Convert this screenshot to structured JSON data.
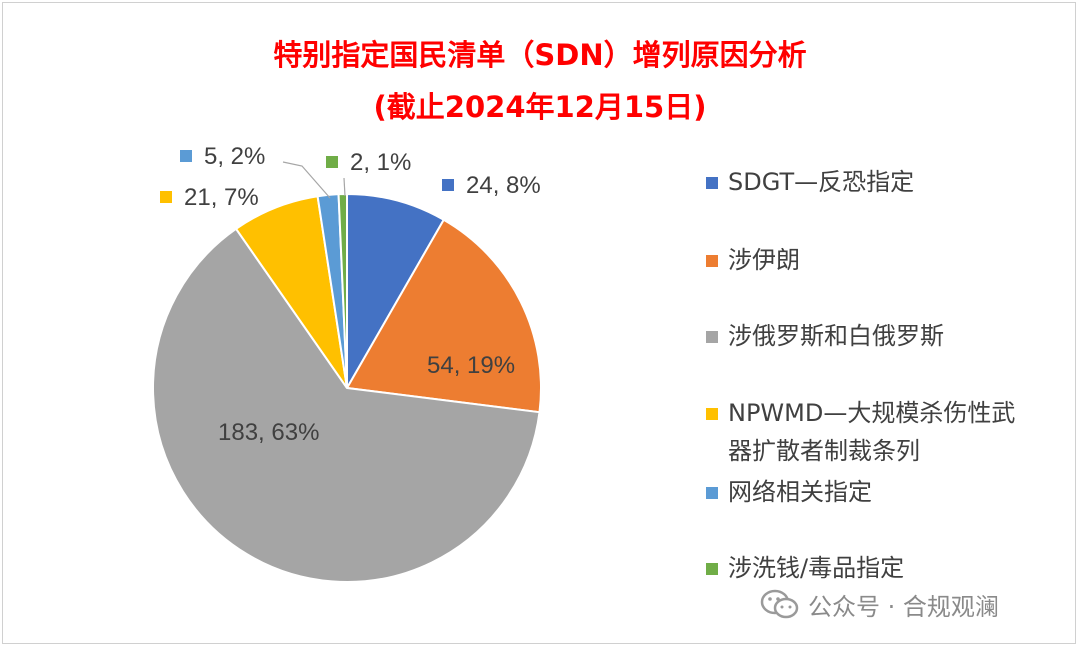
{
  "title": "特别指定国民清单（SDN）增列原因分析",
  "subtitle": "(截止2024年12月15日)",
  "watermark": "公众号 · 合规观澜",
  "chart_data": {
    "type": "pie",
    "title": "特别指定国民清单（SDN）增列原因分析",
    "subtitle": "(截止2024年12月15日)",
    "legend_position": "right",
    "slices": [
      {
        "name": "SDGT—反恐指定",
        "value": 24,
        "label": "24, 8%",
        "color": "#4472c4"
      },
      {
        "name": "涉伊朗",
        "value": 54,
        "label": "54, 19%",
        "color": "#ed7d31"
      },
      {
        "name": "涉俄罗斯和白俄罗斯",
        "value": 183,
        "label": "183, 63%",
        "color": "#a5a5a5"
      },
      {
        "name": "NPWMD—大规模杀伤性武器扩散者制裁条列",
        "value": 21,
        "label": "21, 7%",
        "color": "#ffc000"
      },
      {
        "name": "网络相关指定",
        "value": 5,
        "label": "5, 2%",
        "color": "#5b9bd5"
      },
      {
        "name": "涉洗钱/毒品指定",
        "value": 2,
        "label": "2, 1%",
        "color": "#70ad47"
      }
    ],
    "legend": [
      {
        "lines": [
          "SDGT—反恐指定"
        ],
        "color": "#4472c4"
      },
      {
        "lines": [
          "涉伊朗"
        ],
        "color": "#ed7d31"
      },
      {
        "lines": [
          "涉俄罗斯和白俄罗斯"
        ],
        "color": "#a5a5a5"
      },
      {
        "lines": [
          "NPWMD—大规模杀伤性武",
          "器扩散者制裁条列"
        ],
        "color": "#ffc000"
      },
      {
        "lines": [
          "网络相关指定"
        ],
        "color": "#5b9bd5"
      },
      {
        "lines": [
          "涉洗钱/毒品指定"
        ],
        "color": "#70ad47"
      }
    ]
  }
}
